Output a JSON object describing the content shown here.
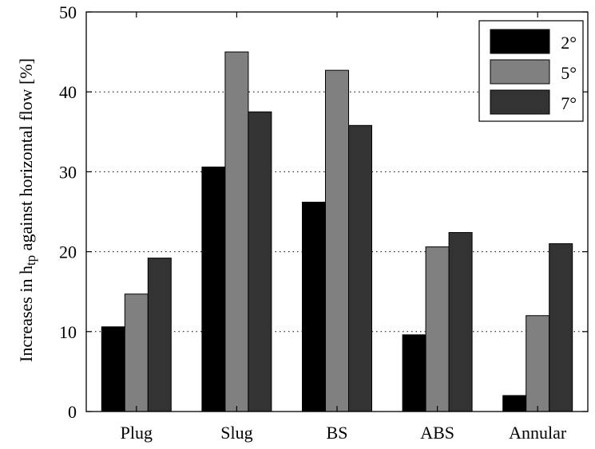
{
  "chart_data": {
    "type": "bar",
    "categories": [
      "Plug",
      "Slug",
      "BS",
      "ABS",
      "Annular"
    ],
    "series": [
      {
        "name": "2°",
        "values": [
          10.6,
          30.6,
          26.2,
          9.6,
          2.0
        ],
        "color": "#000000"
      },
      {
        "name": "5°",
        "values": [
          14.7,
          45.0,
          42.7,
          20.6,
          12.0
        ],
        "color": "#808080"
      },
      {
        "name": "7°",
        "values": [
          19.2,
          37.5,
          35.8,
          22.4,
          21.0
        ],
        "color": "#333333"
      }
    ],
    "ylabel": {
      "prefix": "Increases in h",
      "subscript": "tp",
      "suffix": " against horizontal flow [%]"
    },
    "ylim": [
      0,
      50
    ],
    "yticks": [
      0,
      10,
      20,
      30,
      40,
      50
    ],
    "grid": "horizontal-dotted",
    "legend_position": "top-right",
    "title": "",
    "xlabel": ""
  }
}
